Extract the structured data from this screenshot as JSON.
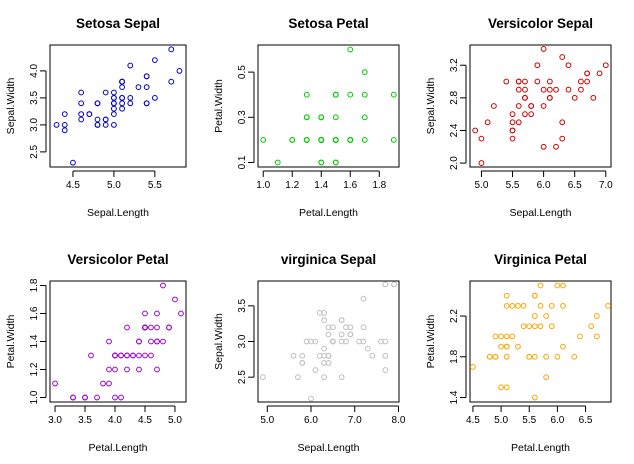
{
  "chart_data": [
    {
      "type": "scatter",
      "title": "Setosa Sepal",
      "xlabel": "Sepal.Length",
      "ylabel": "Sepal.Width",
      "color": "#0000cc",
      "xlim": [
        4.22,
        5.88
      ],
      "ylim": [
        2.22,
        4.48
      ],
      "xticks": [
        4.5,
        5.0,
        5.5
      ],
      "yticks": [
        2.5,
        3.0,
        3.5,
        4.0
      ],
      "x": [
        5.1,
        4.9,
        4.7,
        4.6,
        5.0,
        5.4,
        4.6,
        5.0,
        4.4,
        4.9,
        5.4,
        4.8,
        4.8,
        4.3,
        5.8,
        5.7,
        5.4,
        5.1,
        5.7,
        5.1,
        5.4,
        5.1,
        4.6,
        5.1,
        4.8,
        5.0,
        5.0,
        5.2,
        5.2,
        4.7,
        4.8,
        5.4,
        5.2,
        5.5,
        4.9,
        5.0,
        5.5,
        4.9,
        4.4,
        5.1,
        5.0,
        4.5,
        4.4,
        5.0,
        5.1,
        4.8,
        5.1,
        4.6,
        5.3,
        5.0
      ],
      "y": [
        3.5,
        3.0,
        3.2,
        3.1,
        3.6,
        3.9,
        3.4,
        3.4,
        2.9,
        3.1,
        3.7,
        3.4,
        3.0,
        3.0,
        4.0,
        4.4,
        3.9,
        3.5,
        3.8,
        3.8,
        3.4,
        3.7,
        3.6,
        3.3,
        3.4,
        3.0,
        3.4,
        3.5,
        3.4,
        3.2,
        3.1,
        3.4,
        4.1,
        4.2,
        3.1,
        3.2,
        3.5,
        3.6,
        3.0,
        3.4,
        3.5,
        2.3,
        3.2,
        3.5,
        3.8,
        3.0,
        3.8,
        3.2,
        3.7,
        3.3
      ]
    },
    {
      "type": "scatter",
      "title": "Setosa Petal",
      "xlabel": "Petal.Length",
      "ylabel": "Petal.Width",
      "color": "#00cc00",
      "xlim": [
        0.964,
        1.936
      ],
      "ylim": [
        0.08,
        0.62
      ],
      "xticks": [
        1.0,
        1.2,
        1.4,
        1.6,
        1.8
      ],
      "yticks": [
        0.1,
        0.3,
        0.5
      ],
      "x": [
        1.4,
        1.4,
        1.3,
        1.5,
        1.4,
        1.7,
        1.4,
        1.5,
        1.4,
        1.5,
        1.5,
        1.6,
        1.4,
        1.1,
        1.2,
        1.5,
        1.3,
        1.4,
        1.7,
        1.5,
        1.7,
        1.5,
        1.0,
        1.7,
        1.9,
        1.6,
        1.6,
        1.5,
        1.4,
        1.6,
        1.6,
        1.5,
        1.5,
        1.4,
        1.5,
        1.2,
        1.3,
        1.4,
        1.3,
        1.5,
        1.3,
        1.3,
        1.3,
        1.6,
        1.9,
        1.4,
        1.6,
        1.4,
        1.5,
        1.4
      ],
      "y": [
        0.2,
        0.2,
        0.2,
        0.2,
        0.2,
        0.4,
        0.3,
        0.2,
        0.2,
        0.1,
        0.2,
        0.2,
        0.1,
        0.1,
        0.2,
        0.4,
        0.4,
        0.3,
        0.3,
        0.3,
        0.2,
        0.4,
        0.2,
        0.5,
        0.2,
        0.2,
        0.4,
        0.2,
        0.2,
        0.2,
        0.2,
        0.4,
        0.1,
        0.2,
        0.2,
        0.2,
        0.2,
        0.1,
        0.2,
        0.2,
        0.3,
        0.3,
        0.2,
        0.6,
        0.4,
        0.3,
        0.2,
        0.2,
        0.2,
        0.2
      ]
    },
    {
      "type": "scatter",
      "title": "Versicolor Sepal",
      "xlabel": "Sepal.Length",
      "ylabel": "Sepal.Width",
      "color": "#cc0000",
      "xlim": [
        4.816,
        7.084
      ],
      "ylim": [
        1.952,
        3.448
      ],
      "xticks": [
        5.0,
        5.5,
        6.0,
        6.5,
        7.0
      ],
      "yticks": [
        2.0,
        2.4,
        2.8,
        3.2
      ],
      "x": [
        7.0,
        6.4,
        6.9,
        5.5,
        6.5,
        5.7,
        6.3,
        4.9,
        6.6,
        5.2,
        5.0,
        5.9,
        6.0,
        6.1,
        5.6,
        6.7,
        5.6,
        5.8,
        6.2,
        5.6,
        5.9,
        6.1,
        6.3,
        6.1,
        6.4,
        6.6,
        6.8,
        6.7,
        6.0,
        5.7,
        5.5,
        5.5,
        5.8,
        6.0,
        5.4,
        6.0,
        6.7,
        6.3,
        5.6,
        5.5,
        5.5,
        6.1,
        5.8,
        5.0,
        5.6,
        5.7,
        5.7,
        6.2,
        5.1,
        5.7
      ],
      "y": [
        3.2,
        3.2,
        3.1,
        2.3,
        2.8,
        2.8,
        3.3,
        2.4,
        2.9,
        2.7,
        2.0,
        3.0,
        2.2,
        2.9,
        2.9,
        3.1,
        3.0,
        2.7,
        2.2,
        2.5,
        3.2,
        2.8,
        2.5,
        2.8,
        2.9,
        3.0,
        2.8,
        3.0,
        2.9,
        2.6,
        2.4,
        2.4,
        2.7,
        2.7,
        3.0,
        3.4,
        3.1,
        2.3,
        3.0,
        2.5,
        2.6,
        3.0,
        2.6,
        2.3,
        2.7,
        3.0,
        2.9,
        2.9,
        2.5,
        2.8
      ]
    },
    {
      "type": "scatter",
      "title": "Versicolor Petal",
      "xlabel": "Petal.Length",
      "ylabel": "Petal.Width",
      "color": "#9900cc",
      "xlim": [
        2.916,
        5.184
      ],
      "ylim": [
        0.968,
        1.832
      ],
      "xticks": [
        3.0,
        3.5,
        4.0,
        4.5,
        5.0
      ],
      "yticks": [
        1.0,
        1.2,
        1.4,
        1.6,
        1.8
      ],
      "x": [
        4.7,
        4.5,
        4.9,
        4.0,
        4.6,
        4.5,
        4.7,
        3.3,
        4.6,
        3.9,
        3.5,
        4.2,
        4.0,
        4.7,
        3.6,
        4.4,
        4.5,
        4.1,
        4.5,
        3.9,
        4.8,
        4.0,
        4.9,
        4.7,
        4.3,
        4.4,
        4.8,
        5.0,
        4.5,
        3.5,
        3.8,
        3.7,
        3.9,
        5.1,
        4.5,
        4.5,
        4.7,
        4.4,
        4.1,
        4.0,
        4.4,
        4.6,
        4.0,
        3.3,
        4.2,
        4.2,
        4.2,
        4.3,
        3.0,
        4.1
      ],
      "y": [
        1.4,
        1.5,
        1.5,
        1.3,
        1.5,
        1.3,
        1.6,
        1.0,
        1.3,
        1.4,
        1.0,
        1.5,
        1.0,
        1.4,
        1.3,
        1.4,
        1.5,
        1.0,
        1.5,
        1.1,
        1.8,
        1.3,
        1.5,
        1.2,
        1.3,
        1.4,
        1.4,
        1.7,
        1.5,
        1.0,
        1.1,
        1.0,
        1.2,
        1.6,
        1.5,
        1.6,
        1.5,
        1.3,
        1.3,
        1.3,
        1.2,
        1.4,
        1.2,
        1.0,
        1.3,
        1.2,
        1.3,
        1.3,
        1.1,
        1.3
      ]
    },
    {
      "type": "scatter",
      "title": "virginica Sepal",
      "xlabel": "Sepal.Length",
      "ylabel": "Sepal.Width",
      "color": "#bebebe",
      "xlim": [
        4.788,
        8.012
      ],
      "ylim": [
        2.152,
        3.848
      ],
      "xticks": [
        5.0,
        6.0,
        7.0,
        8.0
      ],
      "yticks": [
        2.5,
        3.0,
        3.5
      ],
      "x": [
        6.3,
        5.8,
        7.1,
        6.3,
        6.5,
        7.6,
        4.9,
        7.3,
        6.7,
        7.2,
        6.5,
        6.4,
        6.8,
        5.7,
        5.8,
        6.4,
        6.5,
        7.7,
        7.7,
        6.0,
        6.9,
        5.6,
        7.7,
        6.3,
        6.7,
        7.2,
        6.2,
        6.1,
        6.4,
        7.2,
        7.4,
        7.9,
        6.4,
        6.3,
        6.1,
        7.7,
        6.3,
        6.4,
        6.0,
        6.9,
        6.7,
        6.9,
        5.8,
        6.8,
        6.7,
        6.7,
        6.3,
        6.5,
        6.2,
        5.9
      ],
      "y": [
        3.3,
        2.7,
        3.0,
        2.9,
        3.0,
        3.0,
        2.5,
        2.9,
        2.5,
        3.6,
        3.2,
        2.7,
        3.0,
        2.5,
        2.8,
        3.2,
        3.0,
        3.8,
        2.6,
        2.2,
        3.2,
        2.8,
        2.8,
        2.7,
        3.3,
        3.2,
        2.8,
        3.0,
        2.8,
        3.0,
        2.8,
        3.8,
        2.8,
        2.8,
        2.6,
        3.0,
        3.4,
        3.1,
        3.0,
        3.1,
        3.1,
        3.1,
        2.7,
        3.2,
        3.3,
        3.0,
        2.5,
        3.0,
        3.4,
        3.0
      ]
    },
    {
      "type": "scatter",
      "title": "Virginica Petal",
      "xlabel": "Petal.Length",
      "ylabel": "Petal.Width",
      "color": "#ffa500",
      "xlim": [
        4.448,
        6.952
      ],
      "ylim": [
        1.356,
        2.544
      ],
      "xticks": [
        4.5,
        5.0,
        5.5,
        6.0,
        6.5
      ],
      "yticks": [
        1.4,
        1.8,
        2.2
      ],
      "x": [
        6.0,
        5.1,
        5.9,
        5.6,
        5.8,
        6.6,
        4.5,
        6.3,
        5.8,
        6.1,
        5.1,
        5.3,
        5.5,
        5.0,
        5.1,
        5.3,
        5.5,
        6.7,
        6.9,
        5.0,
        5.7,
        4.9,
        6.7,
        4.9,
        5.7,
        6.0,
        4.8,
        4.9,
        5.6,
        5.8,
        6.1,
        6.4,
        5.6,
        5.1,
        5.6,
        6.1,
        5.6,
        5.5,
        4.8,
        5.4,
        5.6,
        5.1,
        5.1,
        5.9,
        5.7,
        5.2,
        5.0,
        5.2,
        5.4,
        5.1
      ],
      "y": [
        2.5,
        1.9,
        2.1,
        1.8,
        2.2,
        2.1,
        1.7,
        1.8,
        1.8,
        2.5,
        2.0,
        1.9,
        2.1,
        2.0,
        2.4,
        2.3,
        1.8,
        2.2,
        2.3,
        1.5,
        2.3,
        2.0,
        2.0,
        1.8,
        2.1,
        1.8,
        1.8,
        1.8,
        2.1,
        1.6,
        1.9,
        2.0,
        2.2,
        1.5,
        1.4,
        2.3,
        2.4,
        1.8,
        1.8,
        2.1,
        2.4,
        2.3,
        1.9,
        2.3,
        2.5,
        2.3,
        1.9,
        2.0,
        2.3,
        1.8
      ]
    }
  ]
}
